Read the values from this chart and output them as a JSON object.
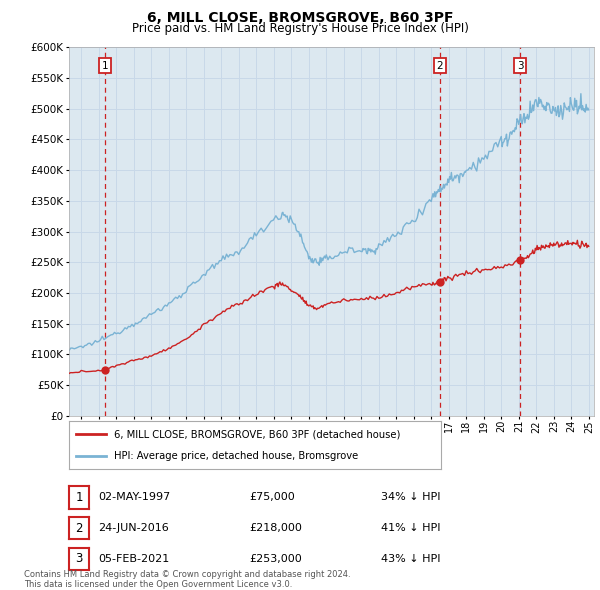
{
  "title": "6, MILL CLOSE, BROMSGROVE, B60 3PF",
  "subtitle": "Price paid vs. HM Land Registry's House Price Index (HPI)",
  "ylim": [
    0,
    600000
  ],
  "xlim_start": 1995.3,
  "xlim_end": 2025.3,
  "legend_line1": "6, MILL CLOSE, BROMSGROVE, B60 3PF (detached house)",
  "legend_line2": "HPI: Average price, detached house, Bromsgrove",
  "sale_points": [
    {
      "label": "1",
      "date": "02-MAY-1997",
      "price": 75000,
      "x": 1997.37,
      "hpi_pct": "34% ↓ HPI"
    },
    {
      "label": "2",
      "date": "24-JUN-2016",
      "price": 218000,
      "x": 2016.48,
      "hpi_pct": "41% ↓ HPI"
    },
    {
      "label": "3",
      "date": "05-FEB-2021",
      "price": 253000,
      "x": 2021.09,
      "hpi_pct": "43% ↓ HPI"
    }
  ],
  "footer": "Contains HM Land Registry data © Crown copyright and database right 2024.\nThis data is licensed under the Open Government Licence v3.0.",
  "hpi_color": "#7ab3d4",
  "price_color": "#cc2222",
  "vline_color": "#cc2222",
  "grid_color": "#c8d8e8",
  "plot_bg_color": "#dce8f0",
  "background_color": "#ffffff"
}
